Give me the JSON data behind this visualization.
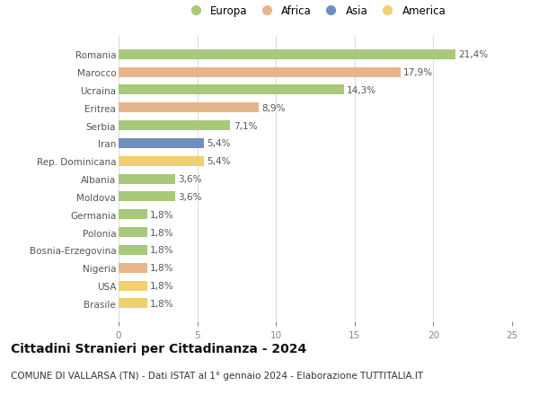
{
  "categories": [
    "Romania",
    "Marocco",
    "Ucraina",
    "Eritrea",
    "Serbia",
    "Iran",
    "Rep. Dominicana",
    "Albania",
    "Moldova",
    "Germania",
    "Polonia",
    "Bosnia-Erzegovina",
    "Nigeria",
    "USA",
    "Brasile"
  ],
  "values": [
    21.4,
    17.9,
    14.3,
    8.9,
    7.1,
    5.4,
    5.4,
    3.6,
    3.6,
    1.8,
    1.8,
    1.8,
    1.8,
    1.8,
    1.8
  ],
  "labels": [
    "21,4%",
    "17,9%",
    "14,3%",
    "8,9%",
    "7,1%",
    "5,4%",
    "5,4%",
    "3,6%",
    "3,6%",
    "1,8%",
    "1,8%",
    "1,8%",
    "1,8%",
    "1,8%",
    "1,8%"
  ],
  "regions": [
    "Europa",
    "Africa",
    "Europa",
    "Africa",
    "Europa",
    "Asia",
    "America",
    "Europa",
    "Europa",
    "Europa",
    "Europa",
    "Europa",
    "Africa",
    "America",
    "America"
  ],
  "colors": {
    "Europa": "#a8c87a",
    "Africa": "#e8b48a",
    "Asia": "#6e8fbf",
    "America": "#f0d070"
  },
  "legend_order": [
    "Europa",
    "Africa",
    "Asia",
    "America"
  ],
  "xlim": [
    0,
    25
  ],
  "xticks": [
    0,
    5,
    10,
    15,
    20,
    25
  ],
  "title": "Cittadini Stranieri per Cittadinanza - 2024",
  "subtitle": "COMUNE DI VALLARSA (TN) - Dati ISTAT al 1° gennaio 2024 - Elaborazione TUTTITALIA.IT",
  "title_fontsize": 10,
  "subtitle_fontsize": 7.5,
  "bar_height": 0.55,
  "background_color": "#ffffff",
  "grid_color": "#dddddd",
  "label_fontsize": 7.5,
  "tick_fontsize": 7.5,
  "legend_fontsize": 8.5
}
